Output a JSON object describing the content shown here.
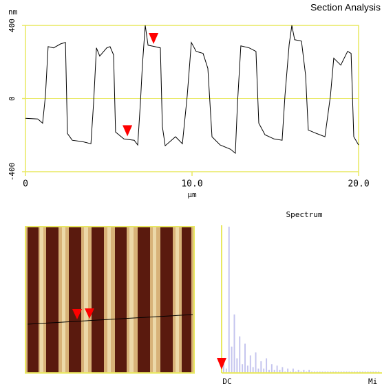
{
  "title": "Section Analysis",
  "chart_data": [
    {
      "type": "line",
      "ylabel": "nm",
      "xlabel": "µm",
      "xlim": [
        0,
        20
      ],
      "ylim": [
        -400,
        400
      ],
      "xticks": [
        0,
        {
          "value": 10,
          "label": "10.0"
        },
        {
          "value": 20,
          "label": "20.0"
        }
      ],
      "yticks": [
        -400,
        0,
        400
      ],
      "zero_line": true,
      "axis_color": "#e8e860",
      "color": "#000000",
      "x": [
        0,
        0.74,
        1.03,
        1.2,
        1.36,
        1.69,
        2.11,
        2.4,
        2.52,
        2.81,
        3.43,
        3.93,
        4.09,
        4.26,
        4.46,
        4.88,
        5.08,
        5.29,
        5.41,
        5.91,
        6.53,
        6.74,
        6.9,
        7.02,
        7.19,
        7.36,
        7.77,
        8.1,
        8.22,
        8.39,
        9.01,
        9.42,
        9.71,
        9.96,
        10.25,
        10.66,
        10.95,
        11.2,
        11.69,
        12.31,
        12.6,
        12.73,
        12.93,
        13.43,
        13.84,
        14.01,
        14.38,
        14.92,
        15.41,
        15.58,
        15.83,
        15.99,
        16.16,
        16.57,
        16.82,
        16.98,
        17.48,
        17.98,
        18.31,
        18.51,
        18.93,
        19.34,
        19.55,
        19.71,
        20.0
      ],
      "values": [
        -108,
        -112,
        -135,
        15,
        284,
        277,
        299,
        307,
        -191,
        -228,
        -236,
        -247,
        -22,
        277,
        232,
        277,
        284,
        239,
        -183,
        -221,
        -228,
        -254,
        -22,
        183,
        400,
        292,
        284,
        277,
        -153,
        -258,
        -209,
        -247,
        15,
        307,
        258,
        247,
        165,
        -209,
        -254,
        -277,
        -299,
        -22,
        288,
        277,
        258,
        -135,
        -198,
        -221,
        -228,
        15,
        295,
        400,
        322,
        314,
        127,
        -172,
        -191,
        -209,
        15,
        221,
        183,
        258,
        247,
        -209,
        -254
      ],
      "cursors": {
        "color": "#ff0000",
        "x": [
          7.69,
          6.12
        ],
        "values": [
          325,
          -180
        ]
      }
    },
    {
      "type": "bar",
      "title": "Spectrum",
      "xticklabels": [
        "DC",
        "Mi"
      ],
      "ylim": [
        0,
        100
      ],
      "axis_color": "#e8e860",
      "color": "#c4c4ee",
      "values": [
        6,
        3,
        100,
        18,
        40,
        10,
        25,
        6,
        20,
        5,
        12,
        4,
        14,
        3,
        8,
        3,
        10,
        2,
        6,
        2,
        5,
        2,
        4,
        1,
        3,
        1,
        3,
        1,
        2,
        1,
        2,
        1,
        2,
        1,
        1,
        1,
        1,
        1,
        1,
        1,
        1,
        1,
        1,
        1,
        1,
        1,
        1,
        1,
        1,
        1,
        1,
        1,
        1,
        1,
        1,
        1,
        1,
        1,
        1
      ]
    }
  ]
}
